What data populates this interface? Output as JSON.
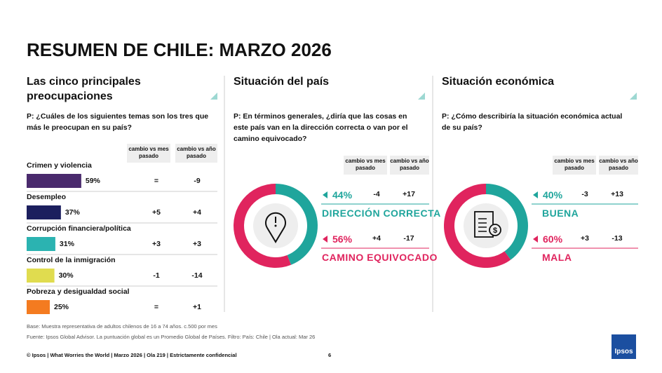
{
  "title": "RESUMEN DE CHILE: MARZO 2026",
  "concerns": {
    "heading": "Las cinco principales preocupaciones",
    "question": "P: ¿Cuáles de los siguientes temas son los tres que más le preocupan en su país?",
    "col_month": "cambio vs mes pasado",
    "col_year": "cambio vs año pasado",
    "items": [
      {
        "label": "Crimen y violencia",
        "value": 59,
        "value_label": "59%",
        "month": "=",
        "year": "-9",
        "color": "#4a2a6d"
      },
      {
        "label": "Desempleo",
        "value": 37,
        "value_label": "37%",
        "month": "+5",
        "year": "+4",
        "color": "#1c1f5e"
      },
      {
        "label": "Corrupción financiera/política",
        "value": 31,
        "value_label": "31%",
        "month": "+3",
        "year": "+3",
        "color": "#2bb3b1"
      },
      {
        "label": "Control de la inmigración",
        "value": 30,
        "value_label": "30%",
        "month": "-1",
        "year": "-14",
        "color": "#e0dc4f"
      },
      {
        "label": "Pobreza y desigualdad social",
        "value": 25,
        "value_label": "25%",
        "month": "=",
        "year": "+1",
        "color": "#f47b20"
      }
    ]
  },
  "country": {
    "heading": "Situación del país",
    "question": "P: En términos generales, ¿diría que las cosas en este país van en la dirección correcta o van por el camino equivocado?",
    "col_month": "cambio vs mes pasado",
    "col_year": "cambio vs año pasado",
    "items": [
      {
        "label": "DIRECCIÓN CORRECTA",
        "value": 44,
        "value_label": "44%",
        "month": "-4",
        "year": "+17",
        "color": "#1fa59c"
      },
      {
        "label": "CAMINO EQUIVOCADO",
        "value": 56,
        "value_label": "56%",
        "month": "+4",
        "year": "-17",
        "color": "#e0245e"
      }
    ]
  },
  "economy": {
    "heading": "Situación económica",
    "question": "P: ¿Cómo describiría la situación económica actual de su país?",
    "col_month": "cambio vs mes pasado",
    "col_year": "cambio vs año pasado",
    "items": [
      {
        "label": "BUENA",
        "value": 40,
        "value_label": "40%",
        "month": "-3",
        "year": "+13",
        "color": "#1fa59c"
      },
      {
        "label": "MALA",
        "value": 60,
        "value_label": "60%",
        "month": "+3",
        "year": "-13",
        "color": "#e0245e"
      }
    ]
  },
  "base_note": "Base: Muestra representativa de adultos chilenos de 16 a 74 años. c.500 por mes",
  "source_note": "Fuente: Ipsos Global Advisor. La puntuación global es un Promedio Global de Países. Filtro: País: Chile | Ola actual: Mar 26",
  "footer": "© Ipsos | What Worries the World | Marzo 2026 | Ola 219 | Estrictamente confidencial",
  "page_number": "6",
  "logo": "Ipsos"
}
